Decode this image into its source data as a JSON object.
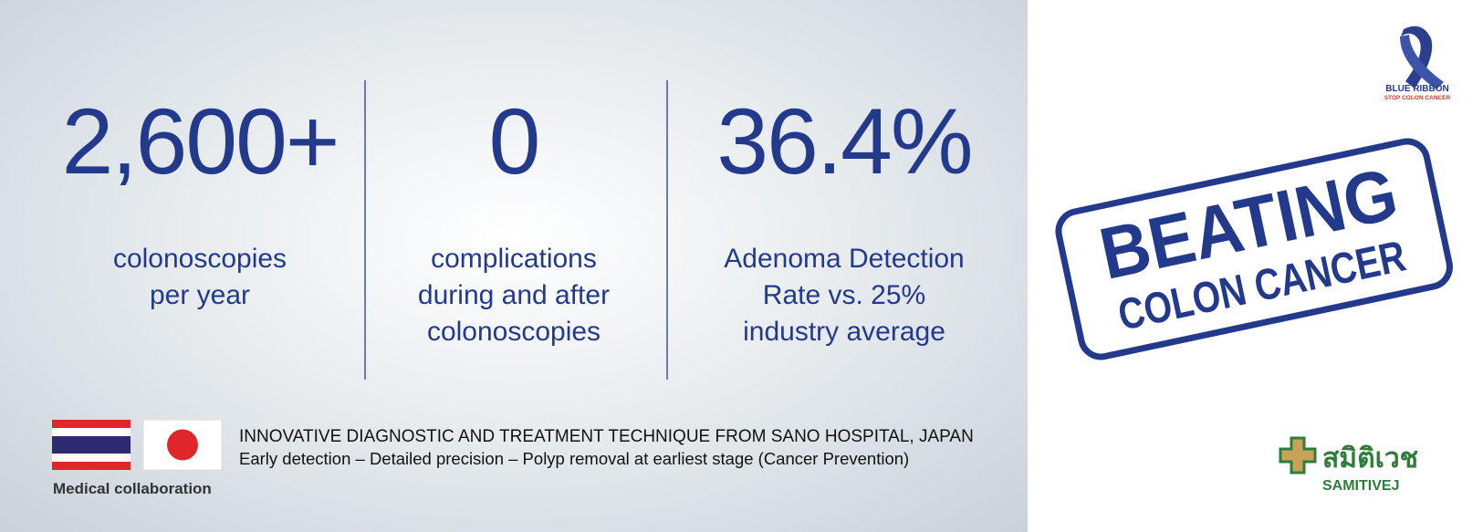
{
  "stats": [
    {
      "value": "2,600+",
      "lines": [
        "colonoscopies",
        "per year"
      ]
    },
    {
      "value": "0",
      "lines": [
        "complications",
        "during and after",
        "colonoscopies"
      ]
    },
    {
      "value": "36.4%",
      "lines": [
        "Adenoma Detection",
        "Rate vs. 25%",
        "industry average"
      ]
    }
  ],
  "footer": {
    "caption": "Medical collaboration",
    "headline": "INNOVATIVE DIAGNOSTIC AND TREATMENT TECHNIQUE FROM SANO HOSPITAL, JAPAN",
    "subline": "Early detection – Detailed precision – Polyp removal at earliest stage (Cancer Prevention)"
  },
  "ribbon": {
    "title": "BLUE RIBBON",
    "subtitle": "STOP COLON CANCER"
  },
  "stamp": {
    "line1": "BEATING",
    "line2": "COLON CANCER"
  },
  "logo": {
    "thai": "สมิติเวช",
    "name": "SAMITIVEJ"
  }
}
